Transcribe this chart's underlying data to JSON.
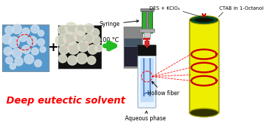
{
  "bg_color": "#ffffff",
  "title_text": "Deep eutectic solvent",
  "title_color": "#ff0000",
  "title_fontsize": 10,
  "label_syringe": "Syringe",
  "label_aqueous": "Aqueous phase",
  "label_hollow": "Hollow fiber",
  "label_des": "DES + KClO₄",
  "label_ctab": "CTAB in 1-Octanol",
  "label_temp": "100 °C",
  "red_arrow_color": "#cc0000",
  "syringe_green": "#33aa33",
  "syringe_red": "#cc2222",
  "fiber_yellow": "#eeee00",
  "fiber_outline": "#999900",
  "fiber_dark": "#222200",
  "cap_black": "#111111",
  "plus_color": "#000000",
  "arrow_green": "#22bb22",
  "photo1_bg": "#5599cc",
  "photo2_bg": "#111111",
  "photo3_bg": "#aaaaaa"
}
